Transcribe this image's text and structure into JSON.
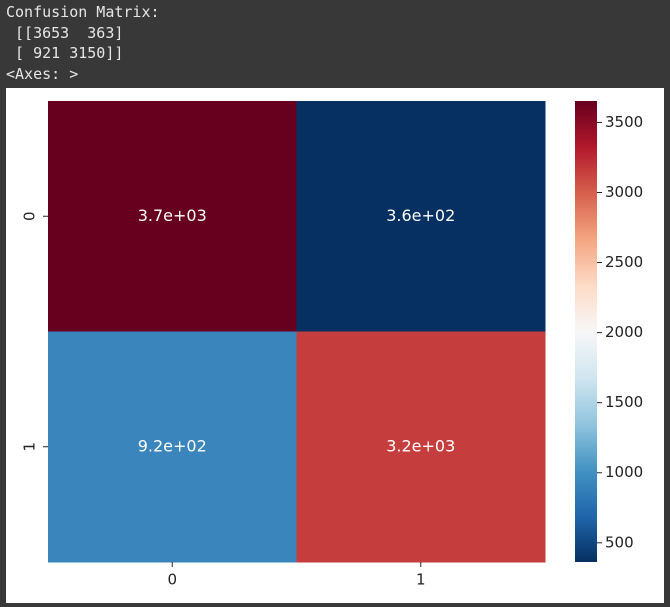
{
  "output": {
    "lines": [
      "Confusion Matrix:",
      " [[3653  363]",
      " [ 921 3150]]",
      "<Axes: >"
    ]
  },
  "chart_data": {
    "type": "heatmap",
    "x_categories": [
      "0",
      "1"
    ],
    "y_categories": [
      "0",
      "1"
    ],
    "values": [
      [
        3653,
        363
      ],
      [
        921,
        3150
      ]
    ],
    "value_labels": [
      [
        "3.7e+03",
        "3.6e+02"
      ],
      [
        "9.2e+02",
        "3.2e+03"
      ]
    ],
    "colormap": "RdBu_r",
    "colorbar_lim": [
      363,
      3653
    ],
    "colorbar_ticks": [
      500,
      1000,
      1500,
      2000,
      2500,
      3000,
      3500
    ]
  }
}
